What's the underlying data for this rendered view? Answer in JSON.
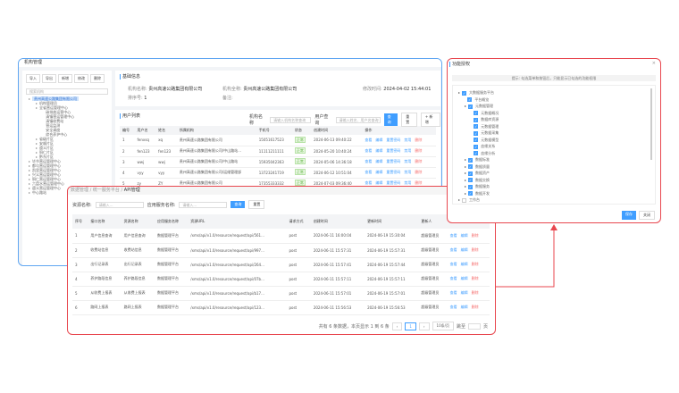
{
  "org": {
    "title": "机构管理",
    "toolbar": [
      "导入",
      "导出",
      "新增",
      "修改",
      "删除"
    ],
    "search_placeholder": "搜索机构",
    "tree": [
      {
        "label": "贵州高速公路集团有限公司",
        "level": 0,
        "selected": true
      },
      {
        "label": "机构管理员",
        "level": 1
      },
      {
        "label": "全省营运管理中心",
        "level": 1
      },
      {
        "label": "碳排放运营中心",
        "level": 2
      },
      {
        "label": "清镇营运管理中心",
        "level": 2
      },
      {
        "label": "清镇收费站",
        "level": 2
      },
      {
        "label": "营运监测",
        "level": 2
      },
      {
        "label": "安全调度",
        "level": 2
      },
      {
        "label": "综合养护中心",
        "level": 2
      },
      {
        "label": "省级片区",
        "level": 1
      },
      {
        "label": "安顺片区",
        "level": 1
      },
      {
        "label": "遵义片区",
        "level": 1
      },
      {
        "label": "铜仁片区",
        "level": 1
      },
      {
        "label": "黔东片区",
        "level": 1
      },
      {
        "label": "毕节营运管理中心",
        "level": 0
      },
      {
        "label": "都匀营运管理中心",
        "level": 0
      },
      {
        "label": "凯里营运管理中心",
        "level": 0
      },
      {
        "label": "兴义营运管理中心",
        "level": 0
      },
      {
        "label": "铜仁营运管理中心",
        "level": 0
      },
      {
        "label": "六盘水营运管理中心",
        "level": 0
      },
      {
        "label": "遵义营运管理中心",
        "level": 0
      },
      {
        "label": "中心路站",
        "level": 0
      }
    ],
    "basic": {
      "title": "基础信息",
      "name_label": "机构名称:",
      "name": "贵州高速公路集团有限公司",
      "full_label": "机构全称:",
      "full": "贵州高速公路集团有限公司",
      "time_label": "修改时间:",
      "time": "2024-04-02 15:44:01",
      "sort_label": "排序号:",
      "sort": "1",
      "remark_label": "备注:"
    },
    "users": {
      "title": "用户列表",
      "org_label": "机构名称",
      "org_placeholder": "请输入机构名称查询",
      "user_label": "用户查询",
      "user_placeholder": "请输入姓名、用户名查询",
      "query": "查询",
      "reset": "重置",
      "add": "+ 新增",
      "columns": [
        "编号",
        "用户名",
        "姓名",
        "所属机构",
        "手机号",
        "状态",
        "创建时间",
        "操作"
      ],
      "actions": [
        "查看",
        "编辑",
        "重置密码",
        "禁用",
        "删除"
      ],
      "rows": [
        [
          "1",
          "fenxsq",
          "xq",
          "贵州高速公路集团有限公司",
          "15051617523",
          "正常",
          "2024-06-13 09:40:22"
        ],
        [
          "2",
          "fen123",
          "fen123",
          "贵州高速公路集团有限公司/中山路站...",
          "11111211111",
          "正常",
          "2024-05-20 10:40:24"
        ],
        [
          "3",
          "wwj",
          "wwj",
          "贵州高速公路集团有限公司/中山路站",
          "15935042363",
          "正常",
          "2024-05-06 14:36:18"
        ],
        [
          "4",
          "vyy",
          "vyy",
          "贵州高速公路集团有限公司/运维管理部",
          "13723241719",
          "正常",
          "2024-06-12 10:51:04"
        ],
        [
          "5",
          "zy",
          "ZY",
          "贵州高速公路集团有限公司",
          "17355333332",
          "正常",
          "2024-07-03 09:36:40"
        ]
      ]
    }
  },
  "api": {
    "breadcrumb": [
      "数据管理",
      "统一服务平台",
      "API管理"
    ],
    "res_label": "资源名称:",
    "res_placeholder": "请输入...",
    "app_label": "应用服务名称:",
    "app_placeholder": "请输入...",
    "query": "查询",
    "reset": "重置",
    "columns": [
      "序号",
      "接口名称",
      "资源名称",
      "应用服务名称",
      "资源URL",
      "请求方式",
      "创建时间",
      "更新时间",
      "更新人",
      "操作"
    ],
    "actions": [
      "查看",
      "编辑",
      "删除"
    ],
    "rows": [
      [
        "1",
        "用户信息查询",
        "用户信息查询",
        "数据管理平台",
        "/xms/api/v1.0/resource/request/api/561...",
        "post",
        "2024-06-11 16:00:04",
        "2024-06-19 15:30:04",
        "超级管理员"
      ],
      [
        "2",
        "收费站信息",
        "收费站信息",
        "数据管理平台",
        "/xms/api/v1.0/resource/request/api/997...",
        "post",
        "2024-06-11 15:57:31",
        "2024-06-19 15:57:31",
        "超级管理员"
      ],
      [
        "3",
        "出行记录表",
        "出行记录表",
        "数据管理平台",
        "/xms/api/v1.0/resource/request/api/264...",
        "post",
        "2024-06-11 15:57:41",
        "2024-06-19 15:57:44",
        "超级管理员"
      ],
      [
        "4",
        "养护路段信息",
        "养护路段信息",
        "数据管理平台",
        "/xms/api/v1.0/resource/request/api/07b...",
        "post",
        "2024-06-11 15:57:11",
        "2024-06-19 15:57:11",
        "超级管理员"
      ],
      [
        "5",
        "从收费上报表",
        "从收费上报表",
        "数据管理平台",
        "/xms/api/v1.0/resource/request/api/b17...",
        "post",
        "2024-06-11 15:57:01",
        "2024-06-19 15:57:01",
        "超级管理员"
      ],
      [
        "6",
        "路网上报表",
        "路网上报表",
        "数据管理平台",
        "/xms/api/v1.0/resource/request/api/123...",
        "post",
        "2024-06-11 15:56:53",
        "2024-06-19 15:56:53",
        "超级管理员"
      ]
    ],
    "pager": {
      "summary": "共有 6 条数据，本页显示 1 到 6 条",
      "page": "1",
      "size": "10条/页",
      "goto": "跳至",
      "unit": "页"
    }
  },
  "dialog": {
    "title": "功能授权",
    "notice": "提示: 勾选菜单和按钮后，只能显示已勾选的功能权限",
    "tree": [
      {
        "label": "大数据服务平台",
        "level": 0,
        "checked": true
      },
      {
        "label": "平台概览",
        "level": 1,
        "checked": true
      },
      {
        "label": "元数据管理",
        "level": 1,
        "checked": true
      },
      {
        "label": "元数据概况",
        "level": 2,
        "checked": true
      },
      {
        "label": "数据库资源",
        "level": 2,
        "checked": true
      },
      {
        "label": "元数据管理",
        "level": 2,
        "checked": true
      },
      {
        "label": "元数据采集",
        "level": 2,
        "checked": true
      },
      {
        "label": "元数据模型",
        "level": 2,
        "checked": true
      },
      {
        "label": "血缘关系",
        "level": 2,
        "checked": true
      },
      {
        "label": "血缘分析",
        "level": 2,
        "checked": true
      },
      {
        "label": "数据标准",
        "level": 1,
        "checked": true
      },
      {
        "label": "数据质量",
        "level": 1,
        "checked": true
      },
      {
        "label": "数据资产",
        "level": 1,
        "checked": true
      },
      {
        "label": "数据交换",
        "level": 1,
        "checked": true
      },
      {
        "label": "数据服务",
        "level": 1,
        "checked": true
      },
      {
        "label": "数据开发",
        "level": 1,
        "checked": true
      },
      {
        "label": "工作台",
        "level": 0,
        "checked": false
      }
    ],
    "save": "保存",
    "close": "关闭"
  },
  "colors": {
    "primary": "#409eff",
    "highlight_border": "#e8474f",
    "window_border": "#5fa6f2"
  }
}
